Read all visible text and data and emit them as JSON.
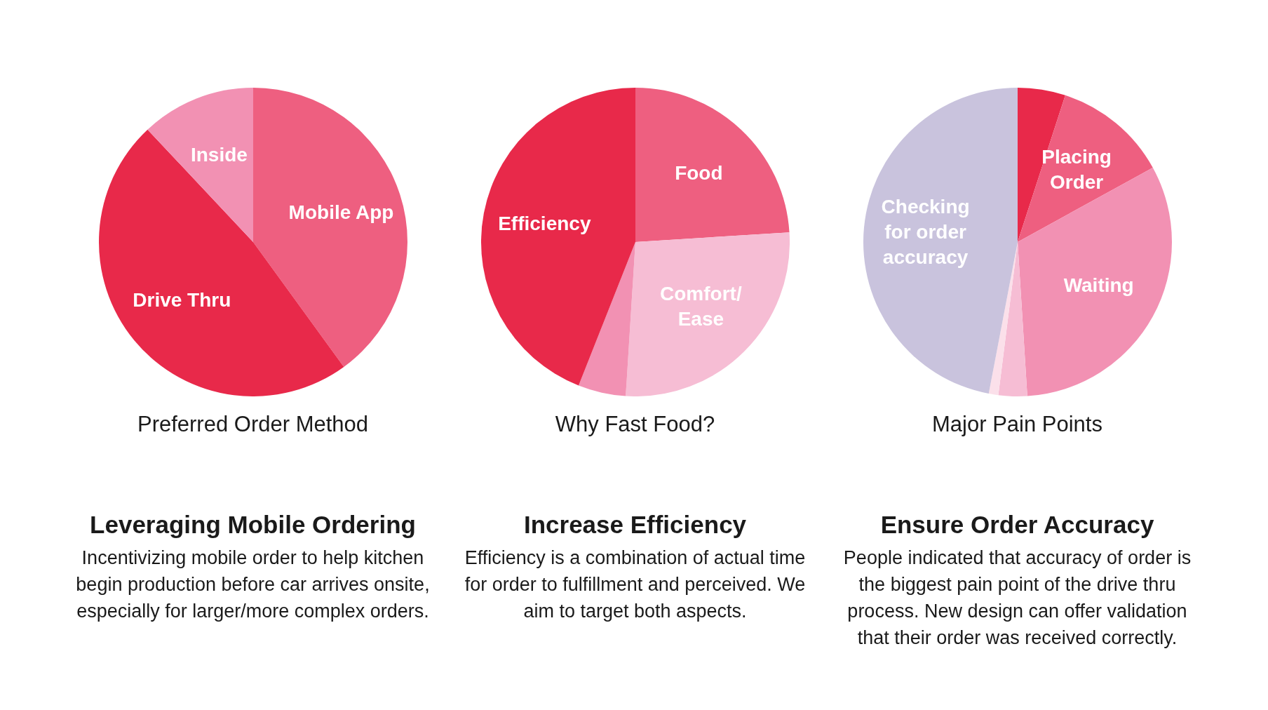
{
  "chart_data": [
    {
      "type": "pie",
      "title": "Preferred Order Method",
      "categories": [
        "Mobile App",
        "Drive Thru",
        "Inside"
      ],
      "values": [
        40,
        48,
        12
      ],
      "colors": [
        "#ee5f80",
        "#e8294a",
        "#f291b3"
      ],
      "annotations": [
        "Leveraging Mobile Ordering",
        "Incentivizing mobile order to help kitchen begin production before car arrives onsite, especially for larger/more complex orders."
      ]
    },
    {
      "type": "pie",
      "title": "Why Fast Food?",
      "categories": [
        "Food",
        "Comfort/ Ease",
        null,
        "Efficiency"
      ],
      "values": [
        24,
        27,
        5,
        44
      ],
      "colors": [
        "#ee5f80",
        "#f6bdd4",
        "#f291b3",
        "#e8294a"
      ],
      "annotations": [
        "Increase Efficiency",
        "Efficiency is a combination of actual time for order to fulfillment and perceived. We aim to target both aspects."
      ]
    },
    {
      "type": "pie",
      "title": "Major Pain Points",
      "categories": [
        null,
        "Placing Order",
        "Waiting",
        null,
        null,
        "Checking for order accuracy"
      ],
      "values": [
        5,
        12,
        32,
        3,
        1,
        47
      ],
      "colors": [
        "#e8294a",
        "#ee5f80",
        "#f291b3",
        "#f6bdd4",
        "#fbe0ea",
        "#c9c3dd"
      ],
      "annotations": [
        "Ensure Order Accuracy",
        "People indicated that accuracy of order is the biggest pain point of the drive thru process. New design can offer validation that their order was received correctly."
      ]
    }
  ]
}
